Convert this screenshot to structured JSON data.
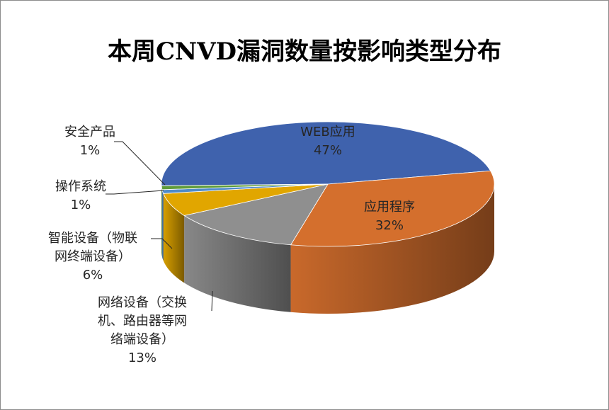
{
  "chart_data": {
    "type": "pie",
    "title": "本周CNVD漏洞数量按影响类型分布",
    "categories": [
      "WEB应用",
      "应用程序",
      "网络设备（交换机、路由器等网络端设备）",
      "智能设备（物联网终端设备）",
      "操作系统",
      "安全产品"
    ],
    "values": [
      47,
      32,
      13,
      6,
      1,
      1
    ],
    "value_labels": [
      "47%",
      "32%",
      "13%",
      "6%",
      "1%",
      "1%"
    ],
    "label_lines": [
      [
        "WEB应用"
      ],
      [
        "应用程序"
      ],
      [
        "网络设备（交换",
        "机、路由器等网",
        "络端设备）"
      ],
      [
        "智能设备（物联",
        "网终端设备）"
      ],
      [
        "操作系统"
      ],
      [
        "安全产品"
      ]
    ],
    "colors": [
      "#3f62ad",
      "#d46f2d",
      "#8f8f8f",
      "#e1a600",
      "#4f8bc9",
      "#5f9c3a"
    ],
    "legend": "none",
    "style": "3d-pie"
  }
}
